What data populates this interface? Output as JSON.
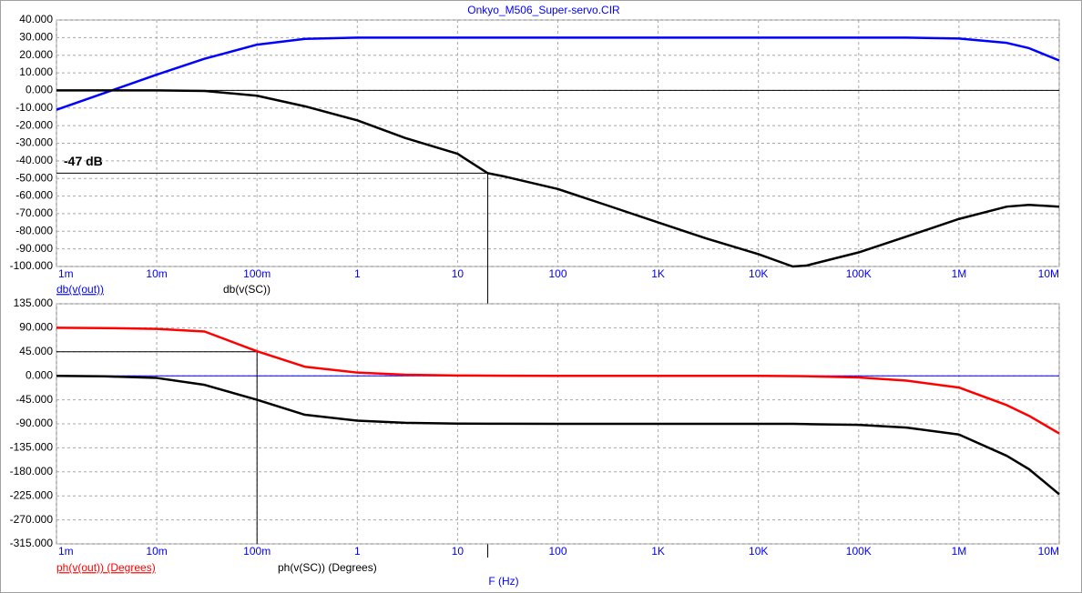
{
  "chart_data": [
    {
      "type": "line",
      "title": "Onkyo_M506_Super-servo.CIR",
      "x": [
        0.001,
        0.003,
        0.01,
        0.03,
        0.1,
        0.3,
        1,
        3,
        10,
        20,
        30,
        100,
        300,
        1000,
        3000,
        10000,
        22000,
        30000,
        100000,
        300000,
        1000000,
        3000000,
        5000000,
        10000000
      ],
      "xlog": true,
      "xlim": [
        0.001,
        10000000
      ],
      "xticks": [
        {
          "value": 0.001,
          "label": "1m"
        },
        {
          "value": 0.01,
          "label": "10m"
        },
        {
          "value": 0.1,
          "label": "100m"
        },
        1,
        10,
        100,
        {
          "value": 1000,
          "label": "1K"
        },
        {
          "value": 10000,
          "label": "10K"
        },
        {
          "value": 100000,
          "label": "100K"
        },
        {
          "value": 1000000,
          "label": "1M"
        },
        {
          "value": 10000000,
          "label": "10M"
        }
      ],
      "ylim": [
        -100,
        40
      ],
      "yticks": [
        {
          "value": 40,
          "label": "40.000"
        },
        {
          "value": 30,
          "label": "30.000"
        },
        {
          "value": 20,
          "label": "20.000"
        },
        {
          "value": 10,
          "label": "10.000"
        },
        {
          "value": 0,
          "label": "0.000"
        },
        {
          "value": -10,
          "label": "-10.000"
        },
        {
          "value": -20,
          "label": "-20.000"
        },
        {
          "value": -30,
          "label": "-30.000"
        },
        {
          "value": -40,
          "label": "-40.000"
        },
        {
          "value": -50,
          "label": "-50.000"
        },
        {
          "value": -60,
          "label": "-60.000"
        },
        {
          "value": -70,
          "label": "-70.000"
        },
        {
          "value": -80,
          "label": "-80.000"
        },
        {
          "value": -90,
          "label": "-90.000"
        },
        {
          "value": -100,
          "label": "-100.000"
        }
      ],
      "grid": true,
      "zero_line_color": "#000000",
      "series": [
        {
          "name": "db(v(out))",
          "color": "#0000ff",
          "values": [
            -11,
            -1.5,
            9,
            18,
            26,
            29.3,
            30,
            30,
            30,
            30,
            30,
            30,
            30,
            30,
            30,
            30,
            30,
            30,
            30,
            30,
            29.5,
            27,
            24,
            17
          ]
        },
        {
          "name": "db(v(SC))",
          "color": "#000000",
          "values": [
            0,
            0,
            0,
            -0.3,
            -3,
            -9,
            -17,
            -27,
            -36,
            -47,
            -49,
            -56,
            -65,
            -75,
            -84,
            -93,
            -100,
            -99.5,
            -92,
            -83,
            -73,
            -66,
            -65,
            -66
          ]
        }
      ],
      "cursor": {
        "x": 20,
        "y": -47,
        "label": "-47 dB"
      }
    },
    {
      "type": "line",
      "xlabel": "F (Hz)",
      "x": [
        0.001,
        0.003,
        0.01,
        0.03,
        0.1,
        0.3,
        1,
        3,
        10,
        20,
        30,
        100,
        300,
        1000,
        3000,
        10000,
        22000,
        30000,
        100000,
        300000,
        1000000,
        3000000,
        5000000,
        10000000
      ],
      "xlog": true,
      "xlim": [
        0.001,
        10000000
      ],
      "xticks": [
        {
          "value": 0.001,
          "label": "1m"
        },
        {
          "value": 0.01,
          "label": "10m"
        },
        {
          "value": 0.1,
          "label": "100m"
        },
        1,
        10,
        100,
        {
          "value": 1000,
          "label": "1K"
        },
        {
          "value": 10000,
          "label": "10K"
        },
        {
          "value": 100000,
          "label": "100K"
        },
        {
          "value": 1000000,
          "label": "1M"
        },
        {
          "value": 10000000,
          "label": "10M"
        }
      ],
      "ylim": [
        -315,
        135
      ],
      "yticks": [
        {
          "value": 135,
          "label": "135.000"
        },
        {
          "value": 90,
          "label": "90.000"
        },
        {
          "value": 45,
          "label": "45.000"
        },
        {
          "value": 0,
          "label": "0.000"
        },
        {
          "value": -45,
          "label": "-45.000"
        },
        {
          "value": -90,
          "label": "-90.000"
        },
        {
          "value": -135,
          "label": "-135.000"
        },
        {
          "value": -180,
          "label": "-180.000"
        },
        {
          "value": -225,
          "label": "-225.000"
        },
        {
          "value": -270,
          "label": "-270.000"
        },
        {
          "value": -315,
          "label": "-315.000"
        }
      ],
      "grid": true,
      "zero_line_color": "#0000ff",
      "series": [
        {
          "name": "ph(v(out)) (Degrees)",
          "color": "#ff0000",
          "values": [
            90,
            89.5,
            88,
            83,
            46,
            17,
            6,
            2,
            0.6,
            0.3,
            0.2,
            0,
            0,
            0,
            0,
            0,
            -0.5,
            -0.7,
            -3,
            -9,
            -22,
            -55,
            -75,
            -108
          ]
        },
        {
          "name": "ph(v(SC)) (Degrees)",
          "color": "#000000",
          "values": [
            0,
            -1,
            -4,
            -17,
            -45,
            -73,
            -84,
            -88,
            -89.5,
            -89.7,
            -89.8,
            -90,
            -90,
            -90,
            -90,
            -90,
            -90,
            -90.5,
            -92,
            -97,
            -110,
            -150,
            -175,
            -222
          ]
        }
      ],
      "cursor": {
        "x": 0.1,
        "y": 45
      }
    }
  ]
}
